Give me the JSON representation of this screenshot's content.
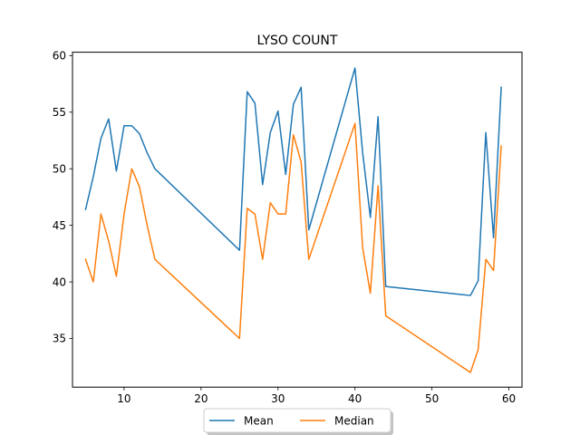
{
  "chart_data": {
    "type": "line",
    "title": "LYSO COUNT",
    "xlabel": "",
    "ylabel": "",
    "xlim": [
      3.3,
      61.7
    ],
    "ylim": [
      30.7,
      60.3
    ],
    "xticks": [
      10,
      20,
      30,
      40,
      50,
      60
    ],
    "yticks": [
      35,
      40,
      45,
      50,
      55,
      60
    ],
    "grid": false,
    "legend_position": "bottom-center",
    "series": [
      {
        "name": "Mean",
        "color": "#1f77b4",
        "x": [
          5,
          6,
          7,
          8,
          9,
          10,
          11,
          12,
          13,
          14,
          25,
          26,
          27,
          28,
          29,
          30,
          31,
          32,
          33,
          34,
          40,
          41,
          42,
          43,
          44,
          55,
          56,
          57,
          58,
          59
        ],
        "y": [
          46.4,
          49.3,
          52.7,
          54.4,
          49.8,
          53.8,
          53.8,
          53.1,
          51.4,
          50.0,
          42.8,
          56.8,
          55.8,
          48.6,
          53.2,
          55.1,
          49.5,
          55.7,
          57.2,
          44.6,
          58.9,
          51.4,
          45.7,
          54.6,
          39.6,
          38.8,
          40.1,
          53.2,
          43.9,
          57.2
        ]
      },
      {
        "name": "Median",
        "color": "#ff7f0e",
        "x": [
          5,
          6,
          7,
          8,
          9,
          10,
          11,
          12,
          13,
          14,
          25,
          26,
          27,
          28,
          29,
          30,
          31,
          32,
          33,
          34,
          40,
          41,
          42,
          43,
          44,
          55,
          56,
          57,
          58,
          59
        ],
        "y": [
          42.0,
          40.0,
          46.0,
          43.6,
          40.5,
          46.0,
          50.0,
          48.4,
          45.0,
          42.0,
          35.0,
          46.5,
          46.0,
          42.0,
          47.0,
          46.0,
          46.0,
          53.0,
          50.6,
          42.0,
          54.0,
          43.0,
          39.0,
          48.5,
          37.0,
          32.0,
          34.0,
          42.0,
          41.0,
          52.0
        ]
      }
    ]
  }
}
